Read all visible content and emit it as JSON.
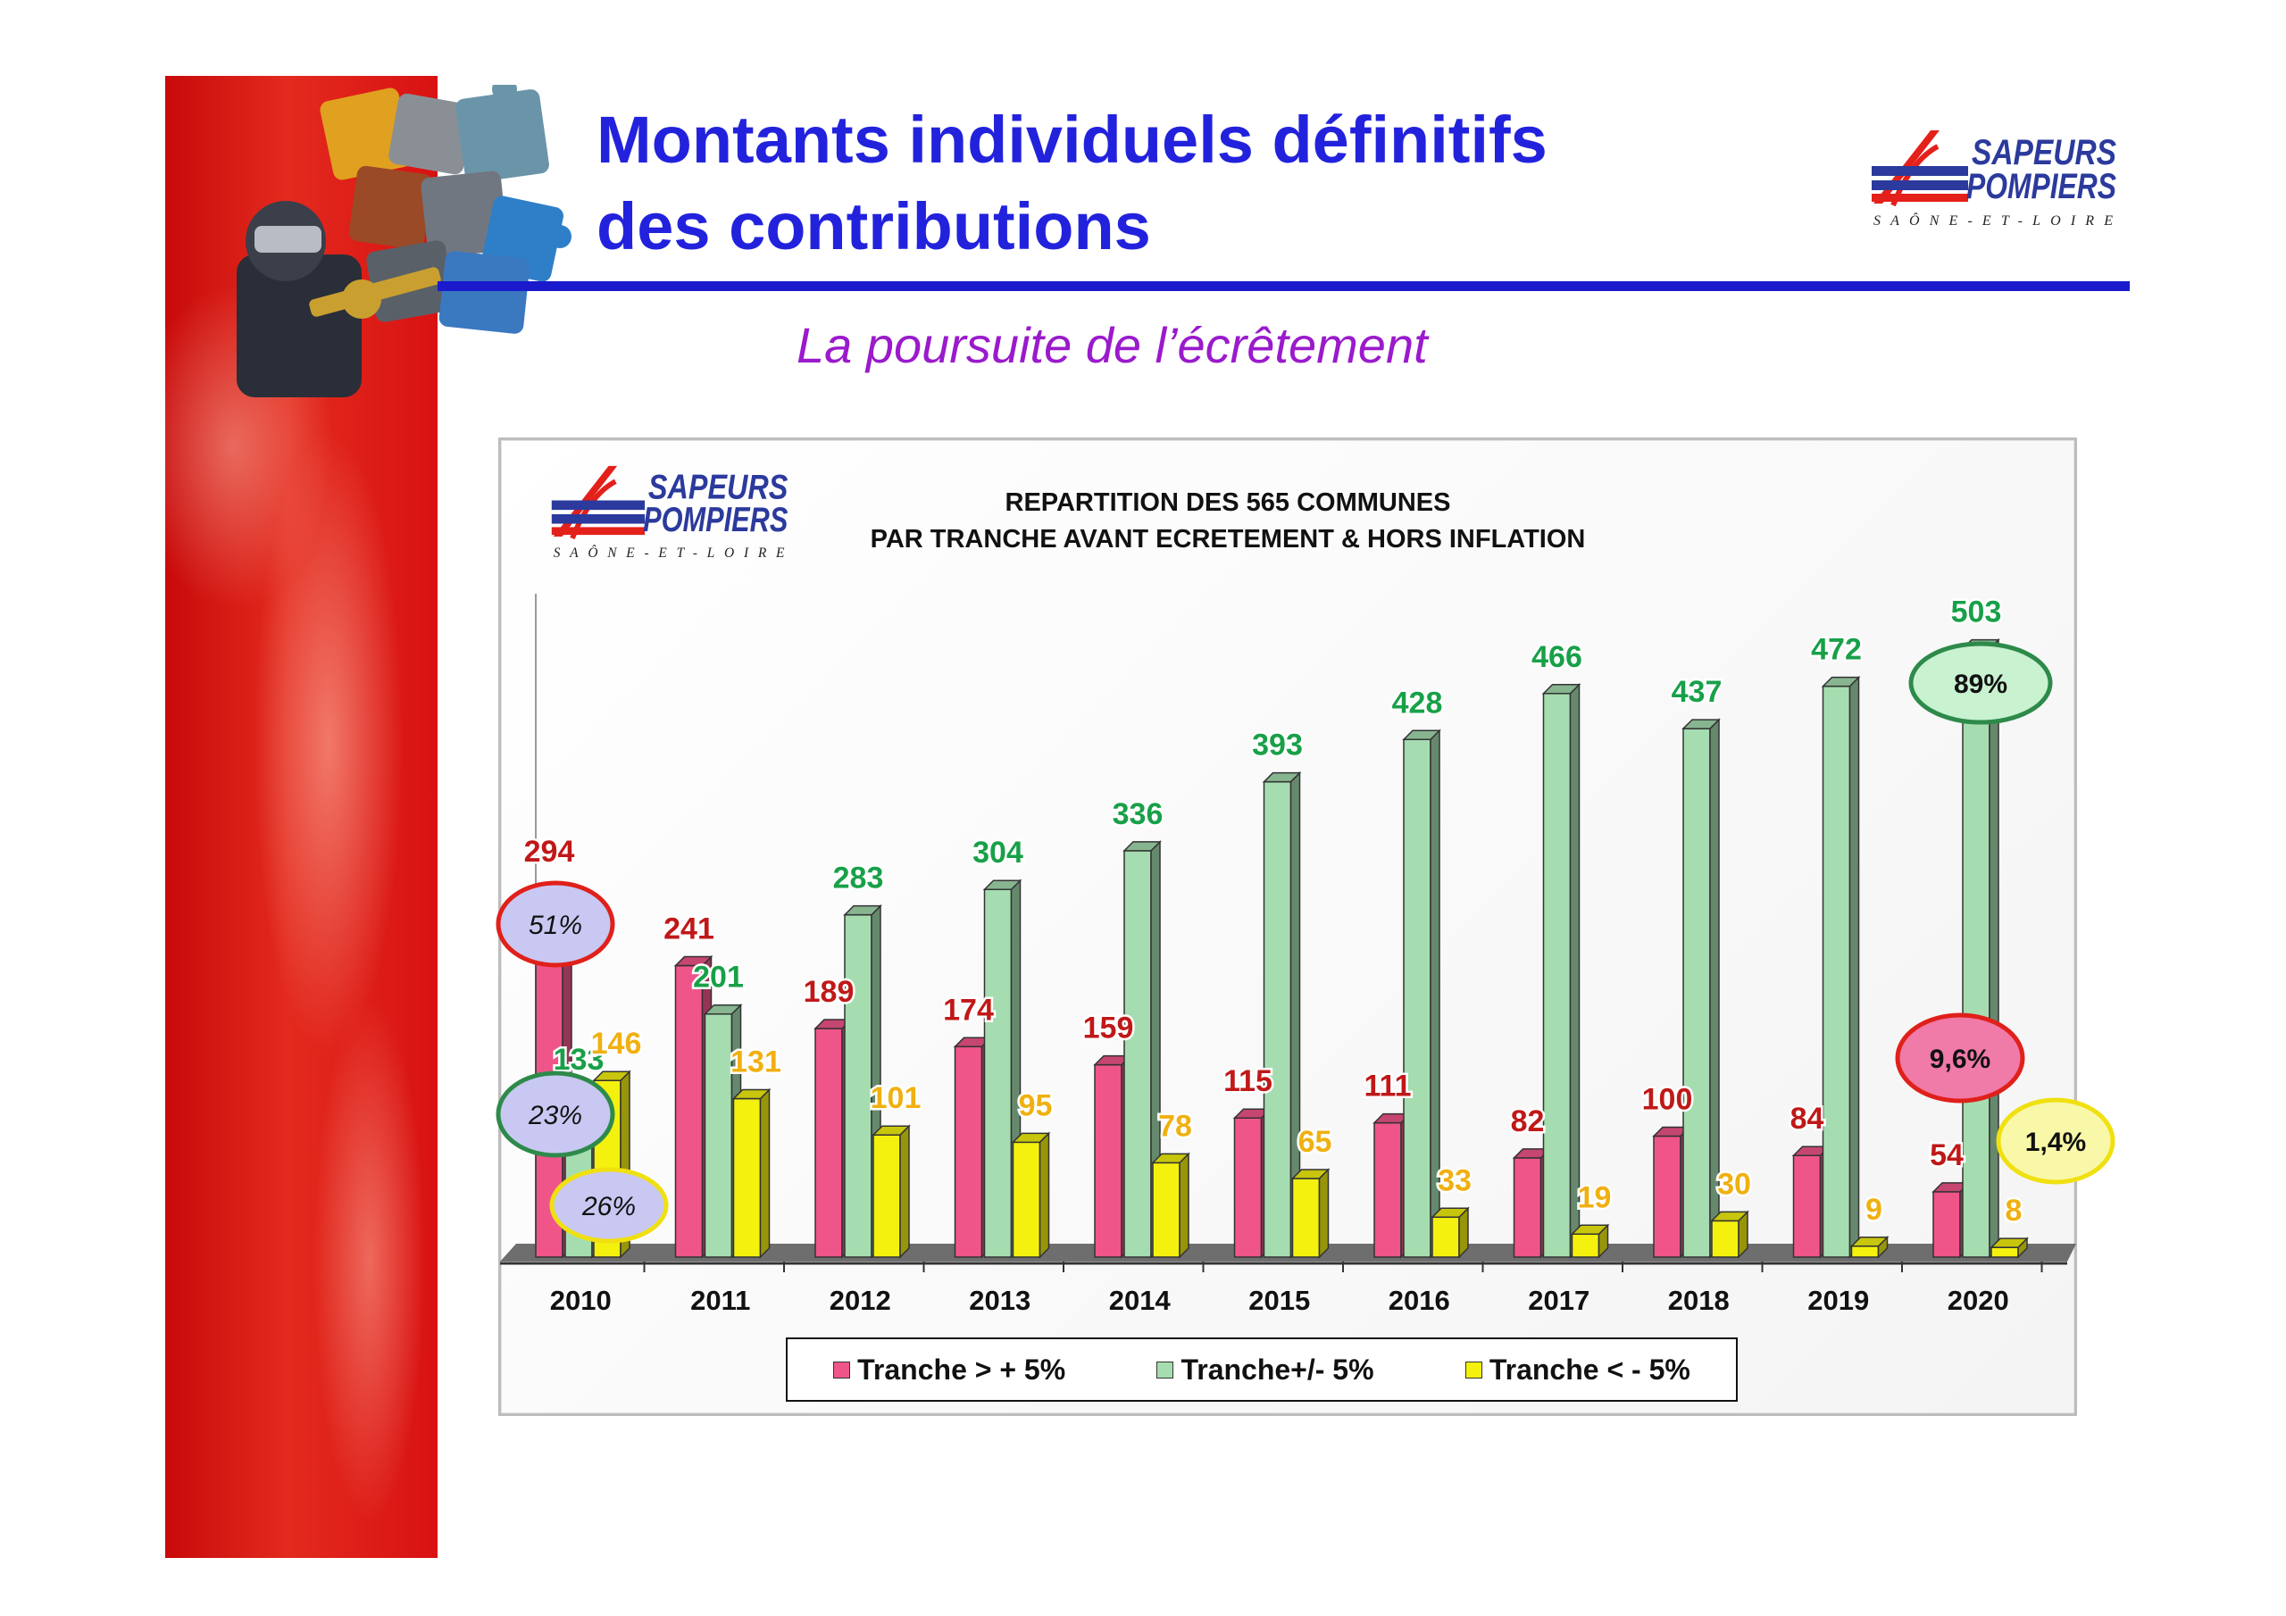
{
  "slide": {
    "title_line1": "Montants individuels définitifs",
    "title_line2": "des contributions",
    "subtitle": "La poursuite de l’écrêtement",
    "logo": {
      "line1": "SAPEURS",
      "line2": "POMPIERS",
      "tagline": "SAÔNE-ET-LOIRE"
    }
  },
  "colors": {
    "title": "#2222dd",
    "subtitle": "#9a1acc",
    "series_over": "#f0558a",
    "series_mid": "#a5ddb0",
    "series_under": "#f4f10f",
    "label_over": "#c01818",
    "label_mid": "#18a048",
    "label_under": "#f0b010",
    "band_red": "#d81212"
  },
  "icons": [
    "puzzle-collage-icon",
    "sapeurs-pompiers-logo"
  ],
  "chart_data": {
    "type": "bar",
    "title_line1": "REPARTITION DES 565 COMMUNES",
    "title_line2": "PAR TRANCHE AVANT ECRETEMENT & HORS INFLATION",
    "categories": [
      "2010",
      "2011",
      "2012",
      "2013",
      "2014",
      "2015",
      "2016",
      "2017",
      "2018",
      "2019",
      "2020"
    ],
    "series": [
      {
        "name": "Tranche > + 5%",
        "values": [
          294,
          241,
          189,
          174,
          159,
          115,
          111,
          82,
          100,
          84,
          54
        ]
      },
      {
        "name": "Tranche+/- 5%",
        "values": [
          133,
          201,
          283,
          304,
          336,
          393,
          428,
          466,
          437,
          472,
          503
        ]
      },
      {
        "name": "Tranche < - 5%",
        "values": [
          146,
          131,
          101,
          95,
          78,
          65,
          33,
          19,
          30,
          9,
          8
        ]
      }
    ],
    "ylim": [
      0,
      550
    ],
    "grid": false,
    "legend_position": "bottom",
    "annotations": [
      {
        "text": "51%",
        "year": "2010",
        "series": "Tranche > + 5%"
      },
      {
        "text": "23%",
        "year": "2010",
        "series": "Tranche+/- 5%"
      },
      {
        "text": "26%",
        "year": "2010",
        "series": "Tranche < - 5%"
      },
      {
        "text": "89%",
        "year": "2020",
        "series": "Tranche+/- 5%"
      },
      {
        "text": "9,6%",
        "year": "2020",
        "series": "Tranche > + 5%"
      },
      {
        "text": "1,4%",
        "year": "2020",
        "series": "Tranche < - 5%"
      }
    ]
  }
}
